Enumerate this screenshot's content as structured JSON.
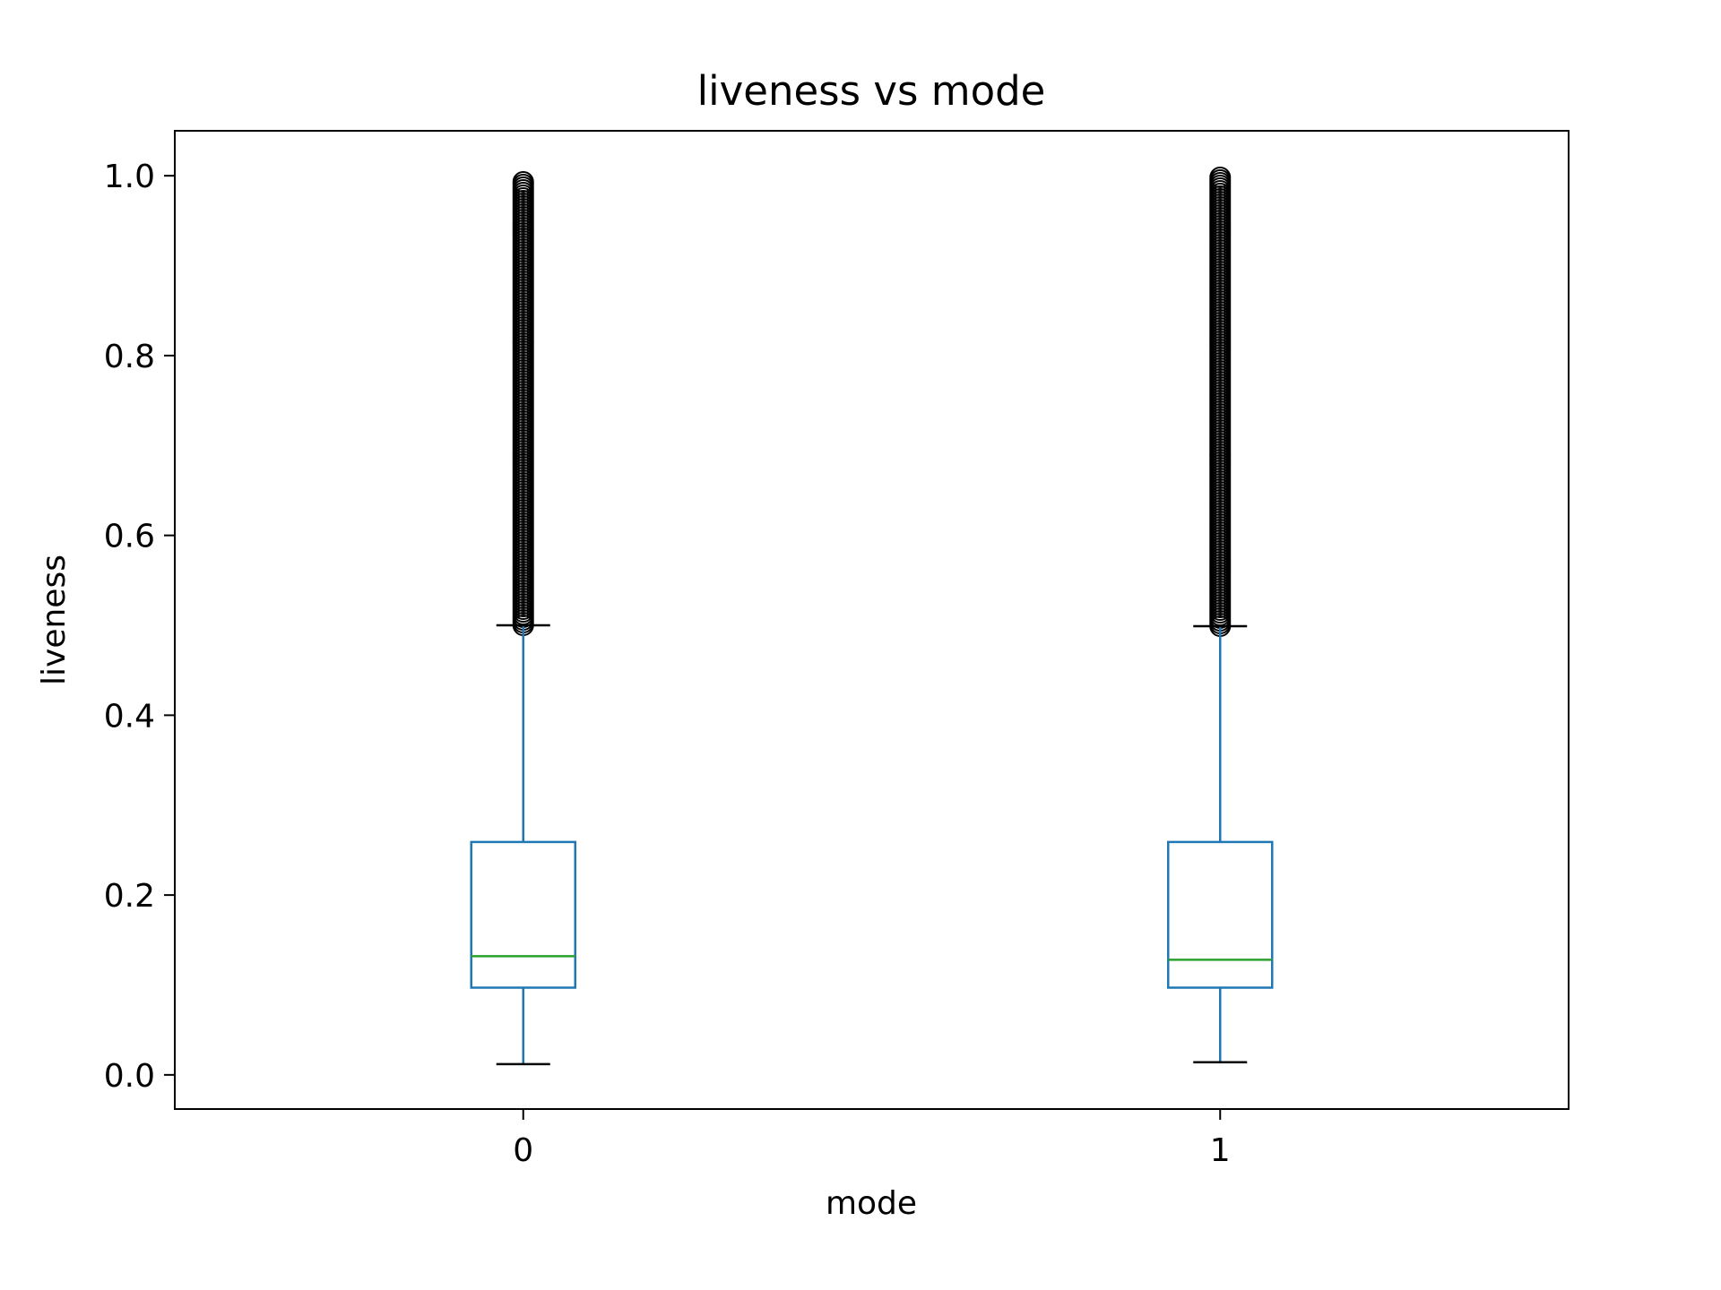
{
  "chart_data": {
    "type": "box",
    "title": "liveness vs mode",
    "xlabel": "mode",
    "ylabel": "liveness",
    "ylim": [
      -0.038,
      1.05
    ],
    "yticks": [
      0.0,
      0.2,
      0.4,
      0.6,
      0.8,
      1.0
    ],
    "categories": [
      "0",
      "1"
    ],
    "boxes": [
      {
        "category": "0",
        "whisker_low": 0.012,
        "q1": 0.097,
        "median": 0.132,
        "q3": 0.259,
        "whisker_high": 0.5,
        "fliers_min": 0.5,
        "fliers_max": 0.994
      },
      {
        "category": "1",
        "whisker_low": 0.014,
        "q1": 0.097,
        "median": 0.128,
        "q3": 0.259,
        "whisker_high": 0.499,
        "fliers_min": 0.499,
        "fliers_max": 1.0
      }
    ],
    "grid": false,
    "colors": {
      "box": "#1f77b4",
      "median": "#2ca02c",
      "caps": "#000000",
      "fliers": "#000000"
    }
  }
}
